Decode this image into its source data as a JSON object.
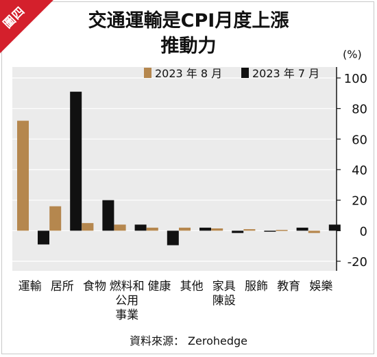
{
  "badge": "圖四",
  "title_lines": [
    "交通運輸是CPI月度上漲",
    "推動力"
  ],
  "source": "資料來源： Zerohedge",
  "chart_data": {
    "type": "bar",
    "title": "交通運輸是CPI月度上漲推動力",
    "unit": "(%)",
    "categories": [
      "運輸",
      "居所",
      "食物",
      "燃料和\n公用\n事業",
      "健康",
      "其他",
      "家具\n陳設",
      "服飾",
      "教育",
      "娛樂"
    ],
    "series": [
      {
        "name": "2023 年 8 月",
        "color": "#b5874e",
        "values": [
          72,
          16,
          5,
          4,
          2,
          2,
          1.5,
          1,
          0.5,
          -1.5
        ]
      },
      {
        "name": "2023 年 7 月",
        "color": "#111111",
        "values": [
          -9,
          91,
          20,
          4,
          -9.5,
          2,
          -1.5,
          -0.5,
          2,
          4
        ]
      }
    ],
    "ylim": [
      -20,
      100
    ],
    "yticks": [
      "100",
      "80",
      "60",
      "40",
      "20",
      "0",
      "-20"
    ],
    "grid": true,
    "legend_position": "top"
  }
}
